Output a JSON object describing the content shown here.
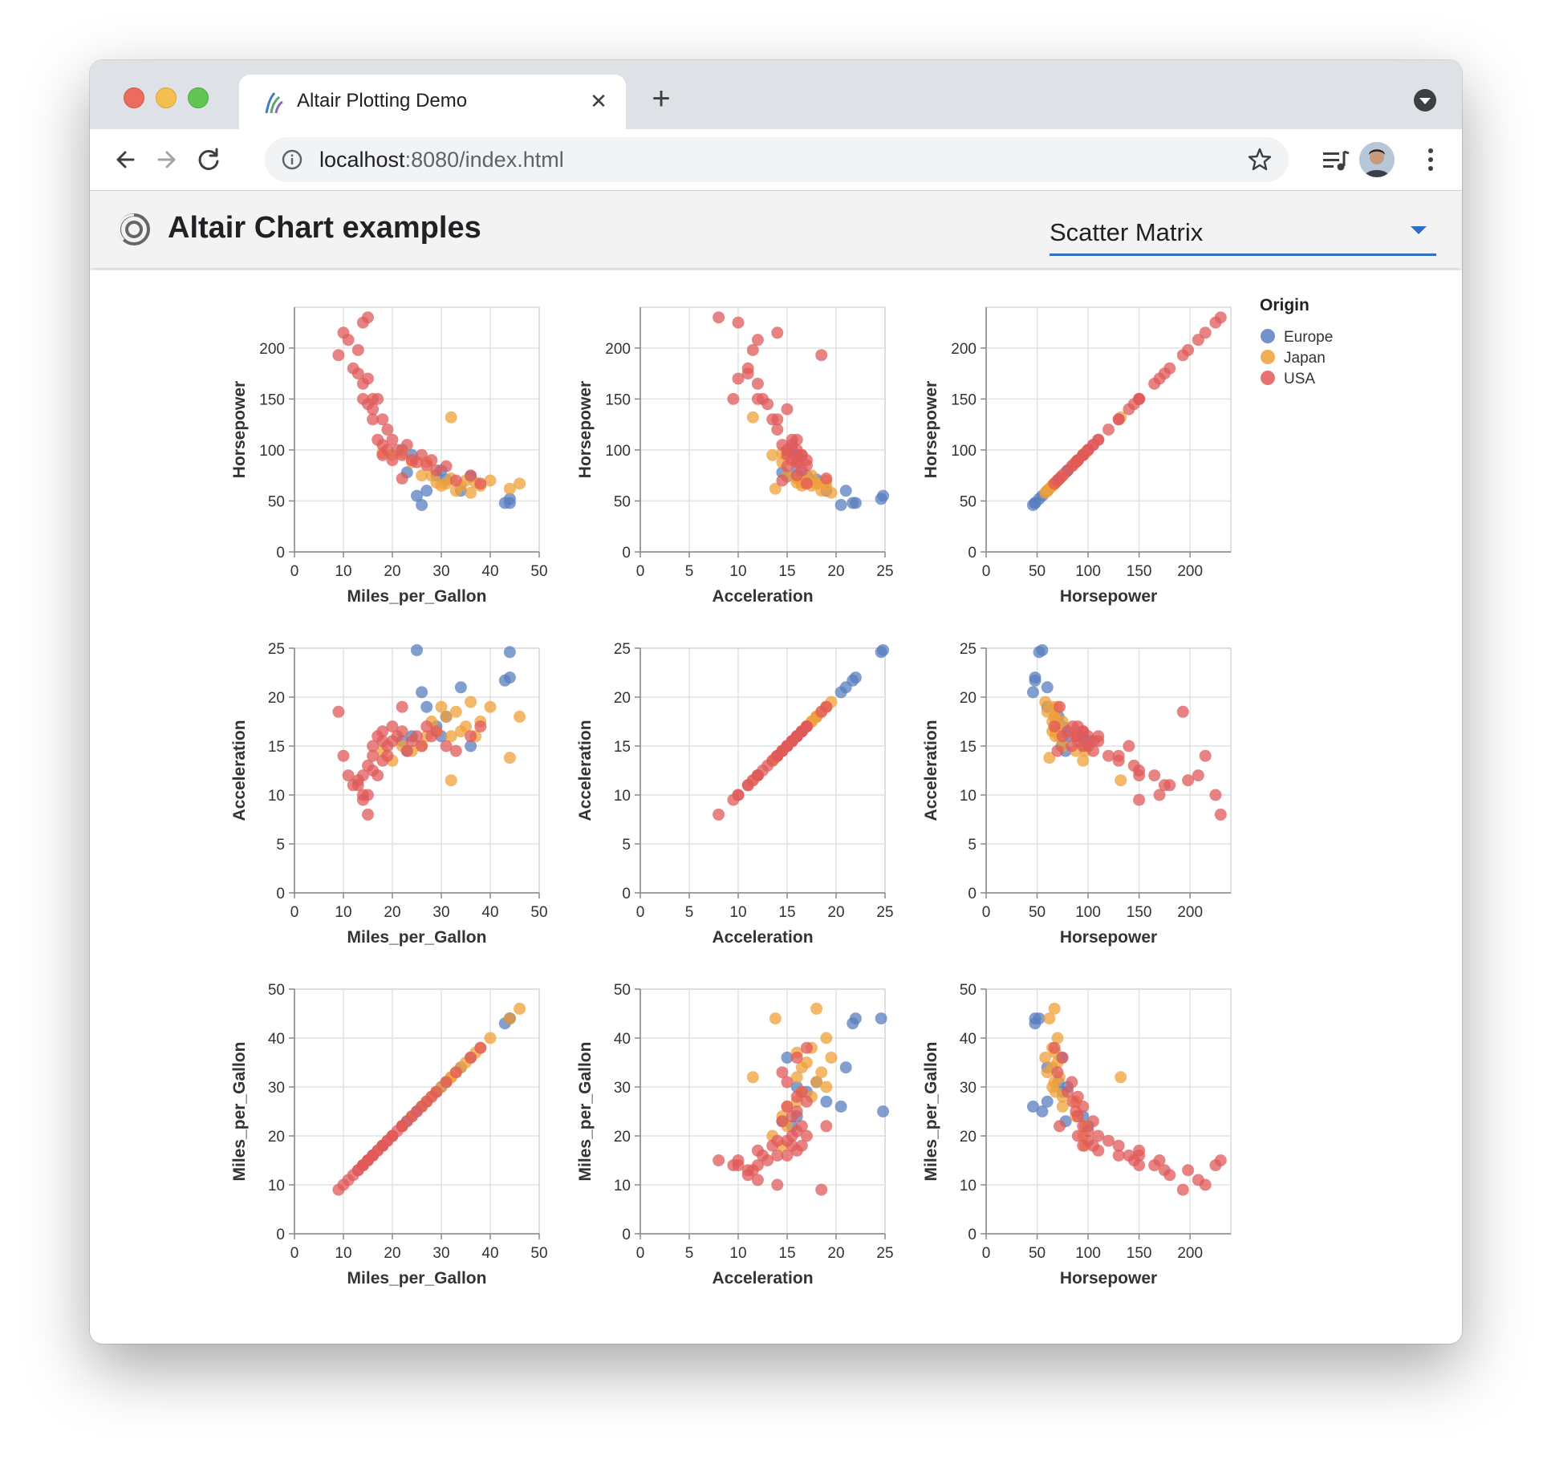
{
  "browser": {
    "tab_title": "Altair Plotting Demo",
    "url_host": "localhost",
    "url_rest": ":8080/index.html"
  },
  "app": {
    "title": "Altair Chart examples",
    "select_value": "Scatter Matrix"
  },
  "colors": {
    "Europe": "#5a7fbf",
    "Japan": "#f0a03a",
    "USA": "#e05a5a",
    "accent": "#2f6ec9"
  },
  "chart_data": {
    "type": "scatter",
    "variables": [
      "Horsepower",
      "Acceleration",
      "Miles_per_Gallon"
    ],
    "x_fields": [
      "Miles_per_Gallon",
      "Acceleration",
      "Horsepower"
    ],
    "ranges": {
      "Miles_per_Gallon": [
        0,
        50
      ],
      "Acceleration": [
        0,
        25
      ],
      "Horsepower": [
        0,
        240
      ]
    },
    "ticks": {
      "Miles_per_Gallon": [
        0,
        10,
        20,
        30,
        40,
        50
      ],
      "Acceleration": [
        0,
        5,
        10,
        15,
        20,
        25
      ],
      "Horsepower": [
        0,
        50,
        100,
        150,
        200
      ]
    },
    "legend": {
      "title": "Origin",
      "placement": "top-right",
      "entries": [
        "Europe",
        "Japan",
        "USA"
      ]
    },
    "grid": true,
    "points": [
      {
        "o": "USA",
        "mpg": 9,
        "hp": 193,
        "acc": 18.5
      },
      {
        "o": "USA",
        "mpg": 10,
        "hp": 215,
        "acc": 14
      },
      {
        "o": "USA",
        "mpg": 11,
        "hp": 208,
        "acc": 12
      },
      {
        "o": "USA",
        "mpg": 12,
        "hp": 180,
        "acc": 11
      },
      {
        "o": "USA",
        "mpg": 13,
        "hp": 175,
        "acc": 11
      },
      {
        "o": "USA",
        "mpg": 13,
        "hp": 198,
        "acc": 11.5
      },
      {
        "o": "USA",
        "mpg": 14,
        "hp": 165,
        "acc": 12
      },
      {
        "o": "USA",
        "mpg": 14,
        "hp": 150,
        "acc": 9.5
      },
      {
        "o": "USA",
        "mpg": 14,
        "hp": 225,
        "acc": 10
      },
      {
        "o": "USA",
        "mpg": 15,
        "hp": 230,
        "acc": 8
      },
      {
        "o": "USA",
        "mpg": 15,
        "hp": 170,
        "acc": 10
      },
      {
        "o": "USA",
        "mpg": 15,
        "hp": 145,
        "acc": 13
      },
      {
        "o": "USA",
        "mpg": 16,
        "hp": 150,
        "acc": 12.5
      },
      {
        "o": "USA",
        "mpg": 16,
        "hp": 130,
        "acc": 14
      },
      {
        "o": "USA",
        "mpg": 16,
        "hp": 140,
        "acc": 15
      },
      {
        "o": "USA",
        "mpg": 17,
        "hp": 110,
        "acc": 16
      },
      {
        "o": "USA",
        "mpg": 17,
        "hp": 150,
        "acc": 12
      },
      {
        "o": "USA",
        "mpg": 18,
        "hp": 105,
        "acc": 15.5
      },
      {
        "o": "USA",
        "mpg": 18,
        "hp": 130,
        "acc": 13.5
      },
      {
        "o": "USA",
        "mpg": 18,
        "hp": 95,
        "acc": 16.5
      },
      {
        "o": "USA",
        "mpg": 19,
        "hp": 100,
        "acc": 15
      },
      {
        "o": "USA",
        "mpg": 19,
        "hp": 120,
        "acc": 14
      },
      {
        "o": "USA",
        "mpg": 20,
        "hp": 90,
        "acc": 17
      },
      {
        "o": "USA",
        "mpg": 20,
        "hp": 110,
        "acc": 15.5
      },
      {
        "o": "USA",
        "mpg": 21,
        "hp": 100,
        "acc": 16
      },
      {
        "o": "USA",
        "mpg": 22,
        "hp": 95,
        "acc": 16.5
      },
      {
        "o": "USA",
        "mpg": 22,
        "hp": 72,
        "acc": 19
      },
      {
        "o": "USA",
        "mpg": 23,
        "hp": 105,
        "acc": 14.5
      },
      {
        "o": "USA",
        "mpg": 24,
        "hp": 90,
        "acc": 15.5
      },
      {
        "o": "USA",
        "mpg": 25,
        "hp": 88,
        "acc": 16
      },
      {
        "o": "USA",
        "mpg": 26,
        "hp": 95,
        "acc": 15
      },
      {
        "o": "USA",
        "mpg": 27,
        "hp": 85,
        "acc": 17
      },
      {
        "o": "USA",
        "mpg": 28,
        "hp": 90,
        "acc": 16
      },
      {
        "o": "USA",
        "mpg": 29,
        "hp": 80,
        "acc": 16.5
      },
      {
        "o": "USA",
        "mpg": 31,
        "hp": 84,
        "acc": 15
      },
      {
        "o": "USA",
        "mpg": 33,
        "hp": 70,
        "acc": 14.5
      },
      {
        "o": "USA",
        "mpg": 36,
        "hp": 75,
        "acc": 16
      },
      {
        "o": "USA",
        "mpg": 38,
        "hp": 67,
        "acc": 17
      },
      {
        "o": "Japan",
        "mpg": 18,
        "hp": 97,
        "acc": 14.5
      },
      {
        "o": "Japan",
        "mpg": 20,
        "hp": 95,
        "acc": 13.5
      },
      {
        "o": "Japan",
        "mpg": 22,
        "hp": 97,
        "acc": 15
      },
      {
        "o": "Japan",
        "mpg": 24,
        "hp": 88,
        "acc": 14.5
      },
      {
        "o": "Japan",
        "mpg": 26,
        "hp": 75,
        "acc": 15
      },
      {
        "o": "Japan",
        "mpg": 27,
        "hp": 88,
        "acc": 16
      },
      {
        "o": "Japan",
        "mpg": 28,
        "hp": 75,
        "acc": 17.5
      },
      {
        "o": "Japan",
        "mpg": 29,
        "hp": 68,
        "acc": 16.5
      },
      {
        "o": "Japan",
        "mpg": 30,
        "hp": 65,
        "acc": 19
      },
      {
        "o": "Japan",
        "mpg": 31,
        "hp": 67,
        "acc": 18
      },
      {
        "o": "Japan",
        "mpg": 32,
        "hp": 132,
        "acc": 11.5
      },
      {
        "o": "Japan",
        "mpg": 32,
        "hp": 72,
        "acc": 16
      },
      {
        "o": "Japan",
        "mpg": 33,
        "hp": 60,
        "acc": 18.5
      },
      {
        "o": "Japan",
        "mpg": 34,
        "hp": 65,
        "acc": 16.5
      },
      {
        "o": "Japan",
        "mpg": 35,
        "hp": 70,
        "acc": 17
      },
      {
        "o": "Japan",
        "mpg": 36,
        "hp": 58,
        "acc": 19.5
      },
      {
        "o": "Japan",
        "mpg": 37,
        "hp": 68,
        "acc": 16
      },
      {
        "o": "Japan",
        "mpg": 38,
        "hp": 65,
        "acc": 17.5
      },
      {
        "o": "Japan",
        "mpg": 40,
        "hp": 70,
        "acc": 19
      },
      {
        "o": "Japan",
        "mpg": 44,
        "hp": 62,
        "acc": 13.8
      },
      {
        "o": "Japan",
        "mpg": 46,
        "hp": 67,
        "acc": 18
      },
      {
        "o": "Europe",
        "mpg": 22,
        "hp": 100,
        "acc": 15.5
      },
      {
        "o": "Europe",
        "mpg": 23,
        "hp": 78,
        "acc": 14.5
      },
      {
        "o": "Europe",
        "mpg": 24,
        "hp": 95,
        "acc": 16
      },
      {
        "o": "Europe",
        "mpg": 25,
        "hp": 55,
        "acc": 24.8
      },
      {
        "o": "Europe",
        "mpg": 26,
        "hp": 46,
        "acc": 20.5
      },
      {
        "o": "Europe",
        "mpg": 27,
        "hp": 60,
        "acc": 19
      },
      {
        "o": "Europe",
        "mpg": 29,
        "hp": 75,
        "acc": 17
      },
      {
        "o": "Europe",
        "mpg": 30,
        "hp": 80,
        "acc": 16
      },
      {
        "o": "Europe",
        "mpg": 31,
        "hp": 71,
        "acc": 18
      },
      {
        "o": "Europe",
        "mpg": 34,
        "hp": 60,
        "acc": 21
      },
      {
        "o": "Europe",
        "mpg": 36,
        "hp": 74,
        "acc": 15
      },
      {
        "o": "Europe",
        "mpg": 43,
        "hp": 48,
        "acc": 21.7
      },
      {
        "o": "Europe",
        "mpg": 44,
        "hp": 52,
        "acc": 24.6
      },
      {
        "o": "Europe",
        "mpg": 44,
        "hp": 48,
        "acc": 22
      }
    ]
  }
}
